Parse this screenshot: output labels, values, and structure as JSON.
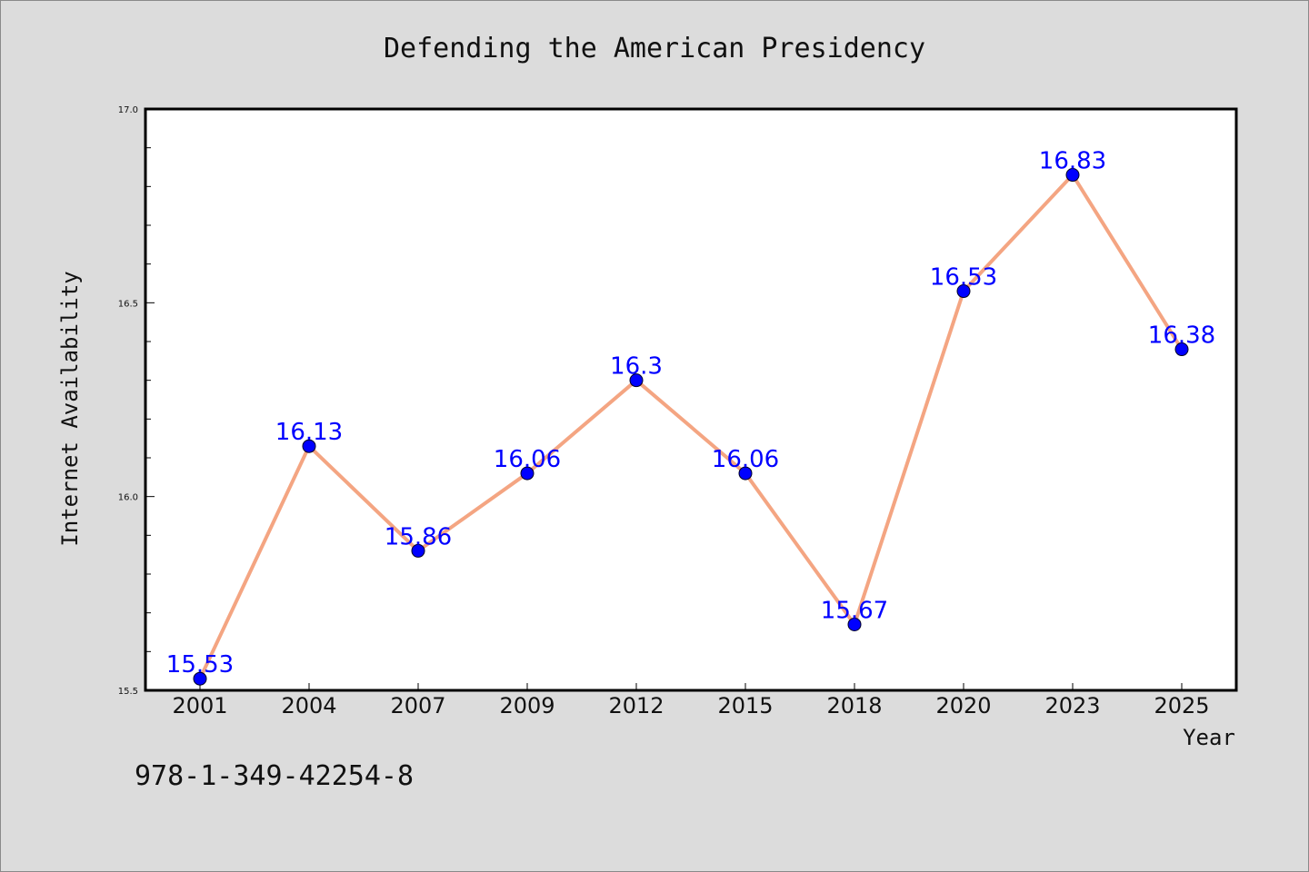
{
  "isbn": "978-1-349-42254-8",
  "colors": {
    "background": "#dcdcdc",
    "plot_area": "#ffffff",
    "line": "#f4a582",
    "marker": "#0000ff",
    "data_label": "#0000ff"
  },
  "chart_data": {
    "type": "line",
    "title": "Defending the American Presidency",
    "xlabel": "Year",
    "ylabel": "Internet Availability",
    "categories": [
      "2001",
      "2004",
      "2007",
      "2009",
      "2012",
      "2015",
      "2018",
      "2020",
      "2023",
      "2025"
    ],
    "series": [
      {
        "values": [
          15.53,
          16.13,
          15.86,
          16.06,
          16.3,
          16.06,
          15.67,
          16.53,
          16.83,
          16.38
        ],
        "labels": [
          "15.53",
          "16.13",
          "15.86",
          "16.06",
          "16.3",
          "16.06",
          "15.67",
          "16.53",
          "16.83",
          "16.38"
        ]
      }
    ],
    "ylim": [
      15.5,
      17.0
    ],
    "yticks": [
      "15.5",
      "16.0",
      "16.5",
      "17.0"
    ],
    "y_minor_step": 0.1,
    "grid": false,
    "legend": "none"
  }
}
